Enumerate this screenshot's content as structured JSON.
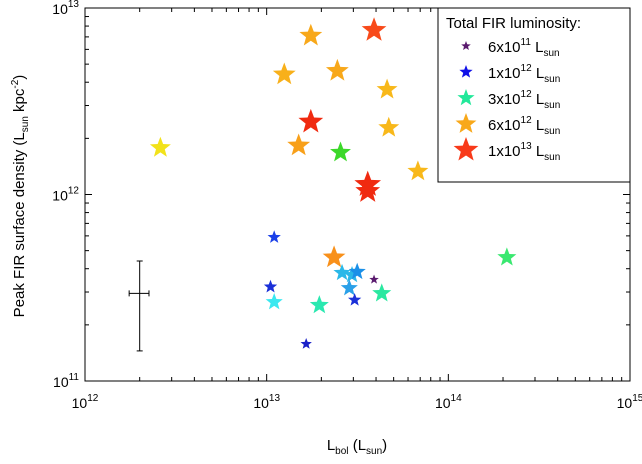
{
  "chart_data": {
    "type": "scatter",
    "xscale": "log",
    "yscale": "log",
    "xlim": [
      1000000000000.0,
      1000000000000000.0
    ],
    "ylim": [
      100000000000.0,
      10000000000000.0
    ],
    "xticks": [
      {
        "value": 1000000000000.0,
        "base": "10",
        "exp": "12"
      },
      {
        "value": 10000000000000.0,
        "base": "10",
        "exp": "13"
      },
      {
        "value": 100000000000000.0,
        "base": "10",
        "exp": "14"
      },
      {
        "value": 1000000000000000.0,
        "base": "10",
        "exp": "15"
      }
    ],
    "yticks": [
      {
        "value": 100000000000.0,
        "base": "10",
        "exp": "11"
      },
      {
        "value": 1000000000000.0,
        "base": "10",
        "exp": "12"
      },
      {
        "value": 10000000000000.0,
        "base": "10",
        "exp": "13"
      }
    ],
    "xlabel": {
      "main": "L",
      "sub": "bol",
      "unit_open": " (L",
      "unit_sub": "sun",
      "unit_close": ")"
    },
    "ylabel": {
      "main": "Peak FIR surface density (L",
      "sub": "sun",
      "mid": " kpc",
      "sup": "-2",
      "close": ")"
    },
    "legend": {
      "title": "Total FIR luminosity:",
      "position": "top-right",
      "entries": [
        {
          "mant": "6x10",
          "exp": "11",
          "unit": " L",
          "sub": "sun",
          "color": "#5a1a6e",
          "size": "xs"
        },
        {
          "mant": "1x10",
          "exp": "12",
          "unit": " L",
          "sub": "sun",
          "color": "#1010e8",
          "size": "s"
        },
        {
          "mant": "3x10",
          "exp": "12",
          "unit": " L",
          "sub": "sun",
          "color": "#22e89a",
          "size": "m"
        },
        {
          "mant": "6x10",
          "exp": "12",
          "unit": " L",
          "sub": "sun",
          "color": "#f8a81a",
          "size": "l"
        },
        {
          "mant": "1x10",
          "exp": "13",
          "unit": " L",
          "sub": "sun",
          "color": "#f83a1a",
          "size": "xl"
        }
      ]
    },
    "errorbar": {
      "x": 2000000000000.0,
      "y": 295000000000.0,
      "xlow": 1750000000000.0,
      "xhigh": 2250000000000.0,
      "ylow": 145000000000.0,
      "yhigh": 440000000000.0
    },
    "points": [
      {
        "x": 2600000000000.0,
        "y": 1780000000000.0,
        "color": "#f2e21a",
        "size": 11
      },
      {
        "x": 17500000000000.0,
        "y": 7100000000000.0,
        "color": "#f8a81a",
        "size": 12
      },
      {
        "x": 39000000000000.0,
        "y": 7600000000000.0,
        "color": "#f84a1a",
        "size": 13
      },
      {
        "x": 12500000000000.0,
        "y": 4400000000000.0,
        "color": "#f8b01a",
        "size": 12
      },
      {
        "x": 24500000000000.0,
        "y": 4600000000000.0,
        "color": "#f8a81a",
        "size": 12
      },
      {
        "x": 46000000000000.0,
        "y": 3650000000000.0,
        "color": "#f8b81a",
        "size": 11
      },
      {
        "x": 17500000000000.0,
        "y": 2450000000000.0,
        "color": "#f02a10",
        "size": 13
      },
      {
        "x": 47000000000000.0,
        "y": 2280000000000.0,
        "color": "#f8b81a",
        "size": 11
      },
      {
        "x": 15000000000000.0,
        "y": 1830000000000.0,
        "color": "#f8a01a",
        "size": 12
      },
      {
        "x": 25500000000000.0,
        "y": 1680000000000.0,
        "color": "#3cd82a",
        "size": 11
      },
      {
        "x": 68000000000000.0,
        "y": 1330000000000.0,
        "color": "#f8b81a",
        "size": 11
      },
      {
        "x": 36000000000000.0,
        "y": 1130000000000.0,
        "color": "#f02a10",
        "size": 14
      },
      {
        "x": 36000000000000.0,
        "y": 1040000000000.0,
        "color": "#f02a10",
        "size": 13
      },
      {
        "x": 11000000000000.0,
        "y": 590000000000.0,
        "color": "#1a40e8",
        "size": 7
      },
      {
        "x": 23500000000000.0,
        "y": 460000000000.0,
        "color": "#f8901a",
        "size": 12
      },
      {
        "x": 210000000000000.0,
        "y": 460000000000.0,
        "color": "#3ae870",
        "size": 10
      },
      {
        "x": 26000000000000.0,
        "y": 380000000000.0,
        "color": "#2ab8e8",
        "size": 9
      },
      {
        "x": 29500000000000.0,
        "y": 370000000000.0,
        "color": "#2ab8e8",
        "size": 9
      },
      {
        "x": 31500000000000.0,
        "y": 385000000000.0,
        "color": "#1a90e8",
        "size": 9
      },
      {
        "x": 39000000000000.0,
        "y": 350000000000.0,
        "color": "#5a1a6e",
        "size": 5
      },
      {
        "x": 10500000000000.0,
        "y": 320000000000.0,
        "color": "#1a30d8",
        "size": 7
      },
      {
        "x": 28500000000000.0,
        "y": 315000000000.0,
        "color": "#2aa0e8",
        "size": 9
      },
      {
        "x": 43000000000000.0,
        "y": 295000000000.0,
        "color": "#2ae8a0",
        "size": 10
      },
      {
        "x": 11000000000000.0,
        "y": 265000000000.0,
        "color": "#3ae8f0",
        "size": 9
      },
      {
        "x": 30500000000000.0,
        "y": 272000000000.0,
        "color": "#1a30d8",
        "size": 7
      },
      {
        "x": 19500000000000.0,
        "y": 255000000000.0,
        "color": "#2ae8b0",
        "size": 10
      },
      {
        "x": 16500000000000.0,
        "y": 158000000000.0,
        "color": "#1a20c8",
        "size": 6
      }
    ]
  }
}
